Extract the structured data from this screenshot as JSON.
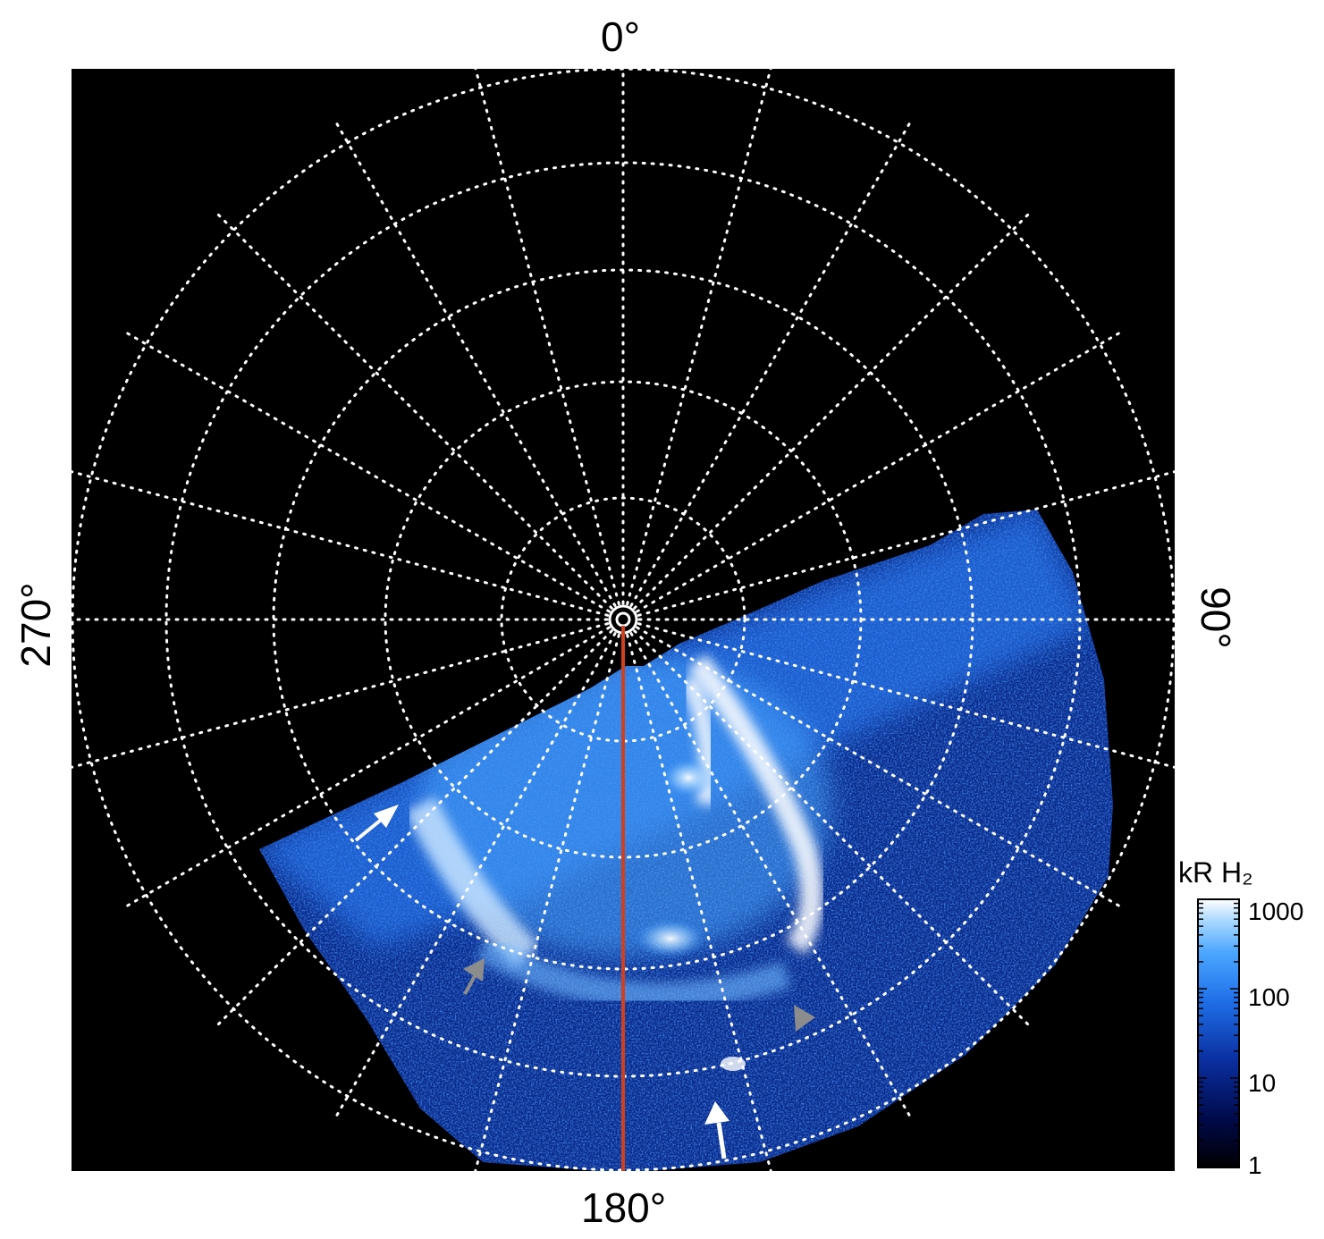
{
  "axis_labels": {
    "top": "0°",
    "bottom": "180°",
    "left": "270°",
    "right": "90°"
  },
  "colorbar": {
    "title": "kR H₂",
    "scale": "log",
    "range": [
      1,
      1000
    ],
    "ticks": [
      "1000",
      "100",
      "10",
      "1"
    ],
    "tick_values": [
      1000,
      100,
      10,
      1
    ]
  },
  "colors": {
    "background": "#000000",
    "grid": "#ffffff",
    "meridian_line": "#d0401c",
    "aurora_bright": "#ffffff",
    "aurora_mid": "#3d9bff",
    "aurora_dim": "#0b2f9a",
    "arrow_white": "#ffffff",
    "arrow_gray": "#8c8c8c"
  },
  "grid": {
    "longitude_spacing_deg": 15,
    "latitude_rings": 5,
    "line_style": "dotted"
  },
  "annotations": [
    {
      "type": "arrow",
      "color": "white"
    },
    {
      "type": "arrow",
      "color": "gray"
    },
    {
      "type": "arrow",
      "color": "gray"
    },
    {
      "type": "arrow",
      "color": "white"
    }
  ]
}
